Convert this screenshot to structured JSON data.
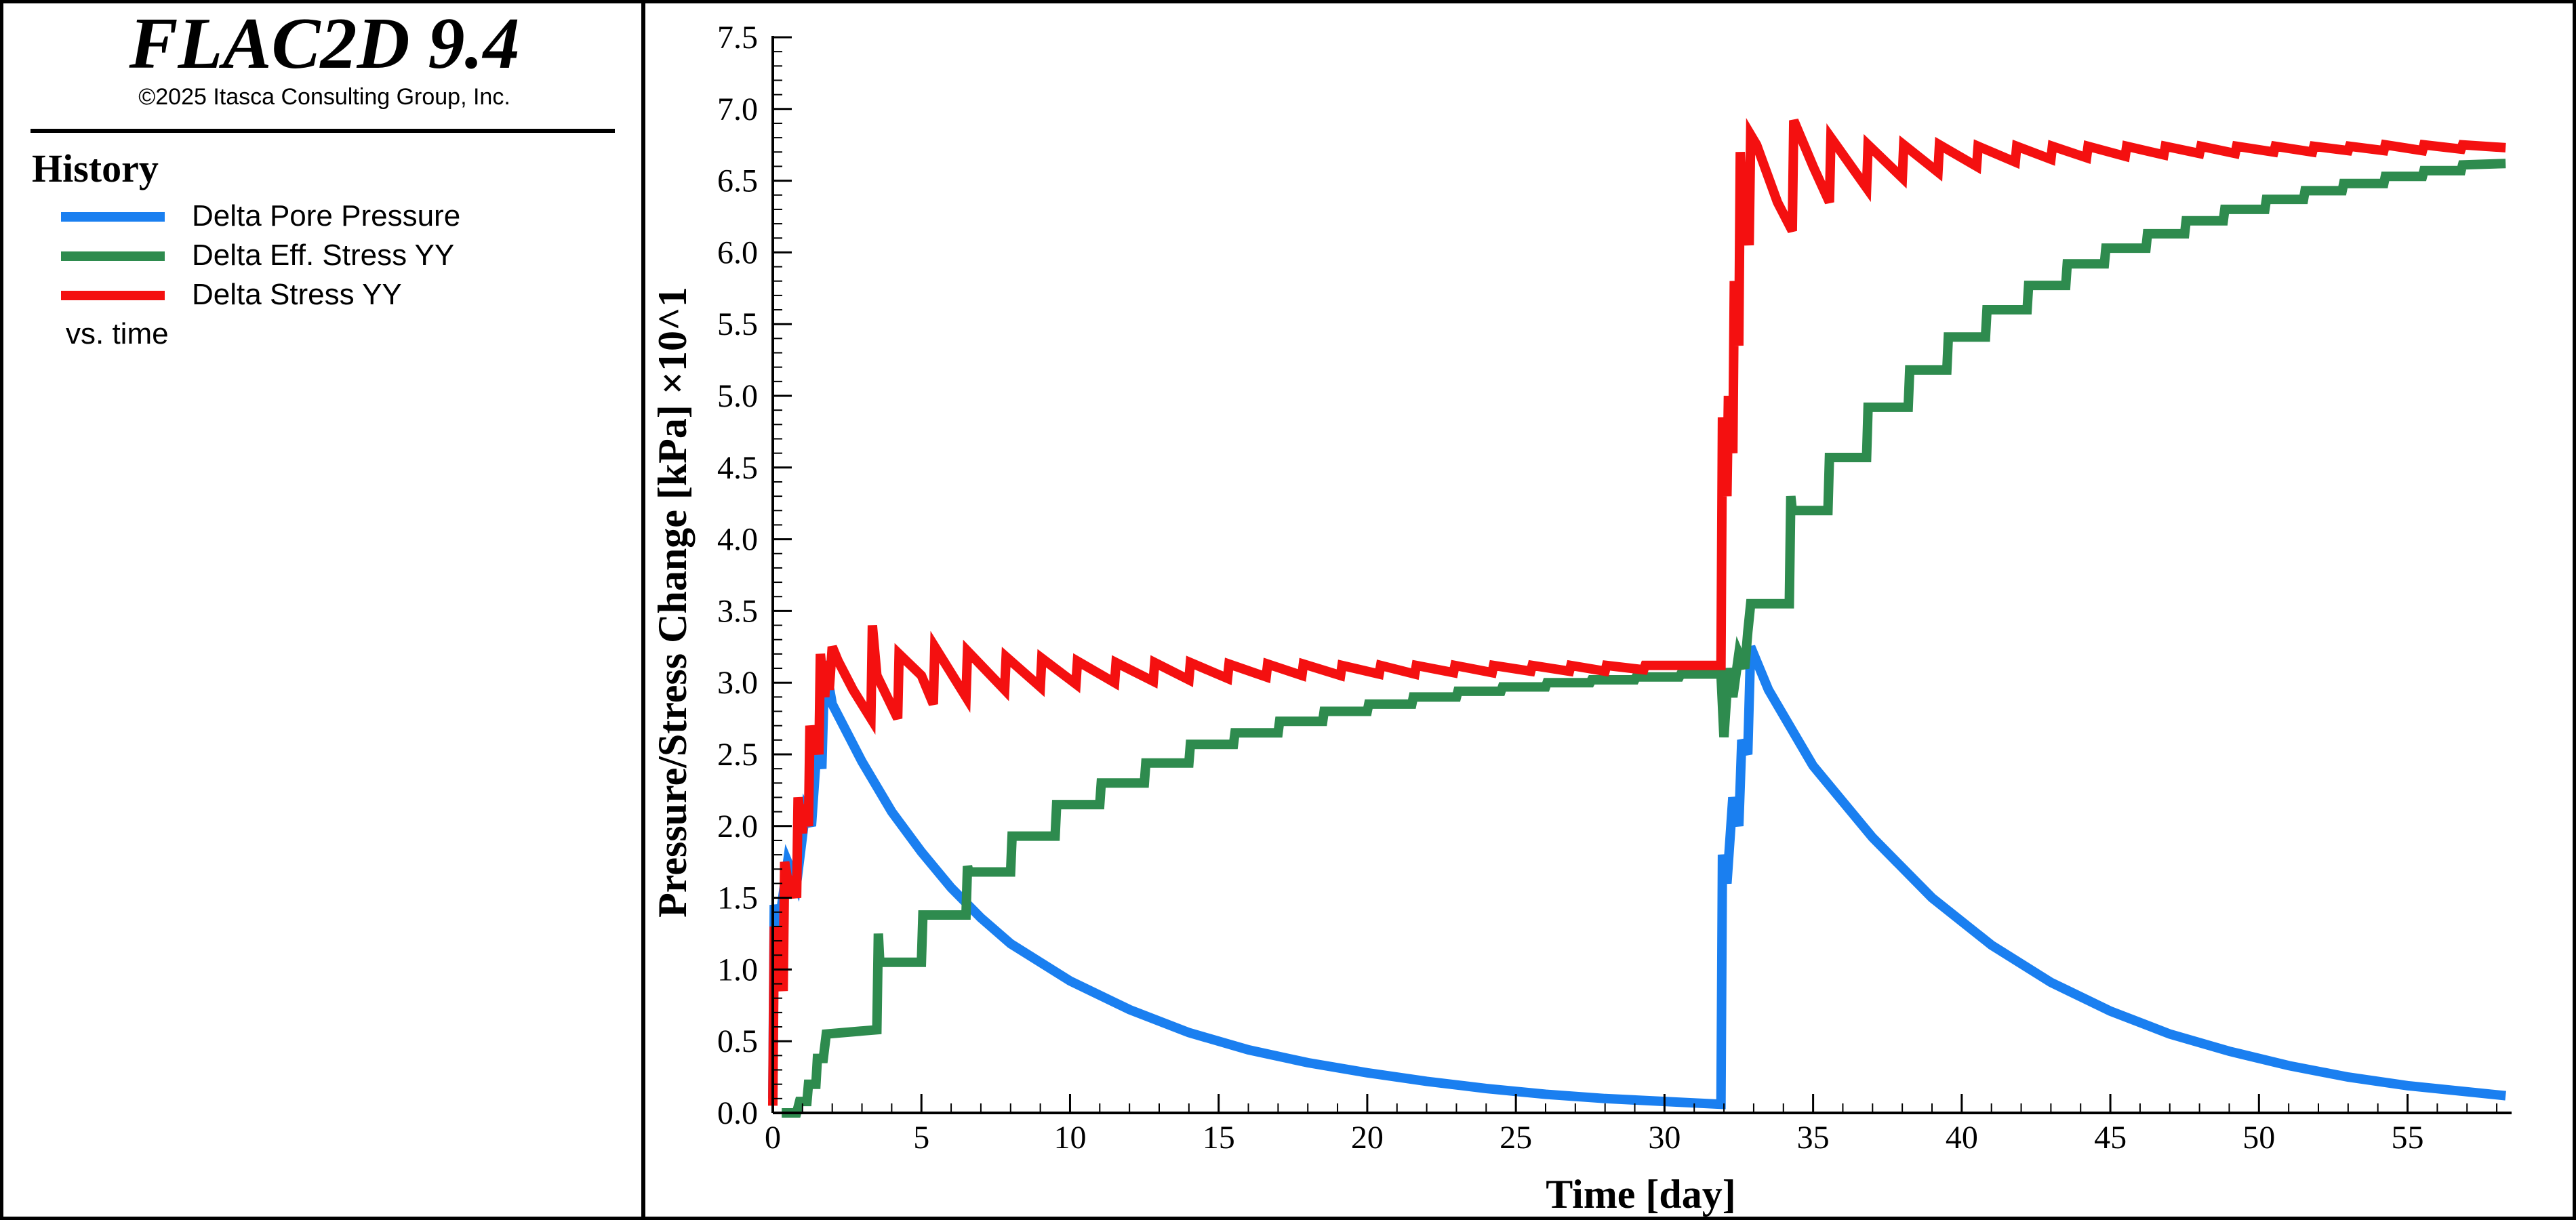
{
  "header": {
    "app_title": "FLAC2D 9.4",
    "copyright": "©2025 Itasca Consulting Group, Inc."
  },
  "legend": {
    "heading": "History",
    "items": [
      {
        "label": "Delta Pore Pressure",
        "color": "#1a7ff0"
      },
      {
        "label": "Delta Eff. Stress YY",
        "color": "#2e8b4e"
      },
      {
        "label": "Delta Stress YY",
        "color": "#f41010"
      }
    ],
    "footer": "vs. time"
  },
  "chart_data": {
    "type": "line",
    "xlabel": "Time [day]",
    "ylabel": "Pressure/Stress Change [kPa] ×10^1",
    "xlim": [
      0,
      58.5
    ],
    "ylim": [
      0,
      7.5
    ],
    "x_ticks": [
      0,
      5,
      10,
      15,
      20,
      25,
      30,
      35,
      40,
      45,
      50,
      55
    ],
    "x_tick_labels": [
      "0",
      "5",
      "10",
      "15",
      "20",
      "25",
      "30",
      "35",
      "40",
      "45",
      "50",
      "55"
    ],
    "y_ticks": [
      0,
      0.5,
      1,
      1.5,
      2,
      2.5,
      3,
      3.5,
      4,
      4.5,
      5,
      5.5,
      6,
      6.5,
      7,
      7.5
    ],
    "y_tick_labels": [
      "0.0",
      "0.5",
      "1.0",
      "1.5",
      "2.0",
      "2.5",
      "3.0",
      "3.5",
      "4.0",
      "4.5",
      "5.0",
      "5.5",
      "6.0",
      "6.5",
      "7.0",
      "7.5"
    ],
    "grid": false,
    "series": [
      {
        "name": "Delta Pore Pressure",
        "color": "#1a7ff0",
        "points": [
          [
            0,
            0.1
          ],
          [
            0.05,
            1.45
          ],
          [
            0.2,
            1.3
          ],
          [
            0.5,
            1.75
          ],
          [
            0.8,
            1.6
          ],
          [
            1.1,
            2.1
          ],
          [
            1.3,
            2.0
          ],
          [
            1.5,
            2.6
          ],
          [
            1.65,
            2.4
          ],
          [
            1.75,
            3.15
          ],
          [
            2.0,
            2.85
          ],
          [
            3,
            2.45
          ],
          [
            4,
            2.1
          ],
          [
            5,
            1.82
          ],
          [
            6,
            1.57
          ],
          [
            7,
            1.36
          ],
          [
            8,
            1.18
          ],
          [
            10,
            0.92
          ],
          [
            12,
            0.72
          ],
          [
            14,
            0.56
          ],
          [
            16,
            0.44
          ],
          [
            18,
            0.35
          ],
          [
            20,
            0.28
          ],
          [
            22,
            0.22
          ],
          [
            24,
            0.17
          ],
          [
            26,
            0.13
          ],
          [
            28,
            0.1
          ],
          [
            30,
            0.08
          ],
          [
            31.9,
            0.06
          ],
          [
            31.95,
            1.8
          ],
          [
            32.1,
            1.6
          ],
          [
            32.3,
            2.2
          ],
          [
            32.5,
            2.0
          ],
          [
            32.6,
            2.6
          ],
          [
            32.8,
            2.5
          ],
          [
            32.9,
            3.25
          ],
          [
            33.5,
            2.95
          ],
          [
            35,
            2.42
          ],
          [
            37,
            1.92
          ],
          [
            39,
            1.5
          ],
          [
            41,
            1.17
          ],
          [
            43,
            0.91
          ],
          [
            45,
            0.71
          ],
          [
            47,
            0.55
          ],
          [
            49,
            0.43
          ],
          [
            51,
            0.33
          ],
          [
            53,
            0.25
          ],
          [
            55,
            0.19
          ],
          [
            58.3,
            0.12
          ]
        ]
      },
      {
        "name": "Delta Eff. Stress YY",
        "color": "#2e8b4e",
        "points": [
          [
            0.3,
            0
          ],
          [
            0.8,
            0
          ],
          [
            0.9,
            0.08
          ],
          [
            1.15,
            0.08
          ],
          [
            1.2,
            0.2
          ],
          [
            1.45,
            0.2
          ],
          [
            1.5,
            0.38
          ],
          [
            1.7,
            0.38
          ],
          [
            1.8,
            0.55
          ],
          [
            3.5,
            0.58
          ],
          [
            3.55,
            1.25
          ],
          [
            3.6,
            1.05
          ],
          [
            5,
            1.05
          ],
          [
            5.05,
            1.38
          ],
          [
            6.5,
            1.38
          ],
          [
            6.55,
            1.72
          ],
          [
            6.6,
            1.68
          ],
          [
            8,
            1.68
          ],
          [
            8.05,
            1.93
          ],
          [
            9.5,
            1.93
          ],
          [
            9.55,
            2.15
          ],
          [
            11,
            2.15
          ],
          [
            11.05,
            2.3
          ],
          [
            12.5,
            2.3
          ],
          [
            12.55,
            2.44
          ],
          [
            14,
            2.44
          ],
          [
            14.05,
            2.57
          ],
          [
            15.5,
            2.57
          ],
          [
            15.55,
            2.65
          ],
          [
            17,
            2.65
          ],
          [
            17.05,
            2.73
          ],
          [
            18.5,
            2.73
          ],
          [
            18.55,
            2.8
          ],
          [
            20,
            2.8
          ],
          [
            20.05,
            2.85
          ],
          [
            21.5,
            2.85
          ],
          [
            21.55,
            2.9
          ],
          [
            23,
            2.9
          ],
          [
            23.05,
            2.94
          ],
          [
            24.5,
            2.94
          ],
          [
            24.55,
            2.97
          ],
          [
            26,
            2.97
          ],
          [
            26.05,
            3.0
          ],
          [
            27.5,
            3.0
          ],
          [
            27.55,
            3.02
          ],
          [
            29,
            3.02
          ],
          [
            29.05,
            3.04
          ],
          [
            30.5,
            3.04
          ],
          [
            30.55,
            3.06
          ],
          [
            31.9,
            3.06
          ],
          [
            32.0,
            2.62
          ],
          [
            32.15,
            3.1
          ],
          [
            32.3,
            2.9
          ],
          [
            32.5,
            3.2
          ],
          [
            32.7,
            3.1
          ],
          [
            32.8,
            3.35
          ],
          [
            32.9,
            3.55
          ],
          [
            34.2,
            3.55
          ],
          [
            34.25,
            4.3
          ],
          [
            34.3,
            4.2
          ],
          [
            35.5,
            4.2
          ],
          [
            35.55,
            4.57
          ],
          [
            36.8,
            4.57
          ],
          [
            36.85,
            4.92
          ],
          [
            38.2,
            4.92
          ],
          [
            38.25,
            5.18
          ],
          [
            39.5,
            5.18
          ],
          [
            39.55,
            5.41
          ],
          [
            40.8,
            5.41
          ],
          [
            40.85,
            5.6
          ],
          [
            42.2,
            5.6
          ],
          [
            42.25,
            5.77
          ],
          [
            43.5,
            5.77
          ],
          [
            43.55,
            5.92
          ],
          [
            44.8,
            5.92
          ],
          [
            44.85,
            6.03
          ],
          [
            46.2,
            6.03
          ],
          [
            46.25,
            6.13
          ],
          [
            47.5,
            6.13
          ],
          [
            47.55,
            6.22
          ],
          [
            48.8,
            6.22
          ],
          [
            48.85,
            6.3
          ],
          [
            50.2,
            6.3
          ],
          [
            50.25,
            6.37
          ],
          [
            51.5,
            6.37
          ],
          [
            51.55,
            6.43
          ],
          [
            52.8,
            6.43
          ],
          [
            52.85,
            6.48
          ],
          [
            54.2,
            6.48
          ],
          [
            54.25,
            6.53
          ],
          [
            55.5,
            6.53
          ],
          [
            55.55,
            6.57
          ],
          [
            56.8,
            6.57
          ],
          [
            56.85,
            6.61
          ],
          [
            58.3,
            6.62
          ]
        ]
      },
      {
        "name": "Delta Stress YY",
        "color": "#f41010",
        "points": [
          [
            0,
            0.05
          ],
          [
            0.05,
            1.3
          ],
          [
            0.15,
            0.95
          ],
          [
            0.2,
            1.2
          ],
          [
            0.35,
            0.85
          ],
          [
            0.4,
            1.75
          ],
          [
            0.6,
            1.5
          ],
          [
            0.65,
            1.65
          ],
          [
            0.8,
            1.5
          ],
          [
            0.85,
            2.2
          ],
          [
            1.0,
            1.95
          ],
          [
            1.05,
            2.15
          ],
          [
            1.2,
            2.0
          ],
          [
            1.25,
            2.7
          ],
          [
            1.4,
            2.5
          ],
          [
            1.45,
            2.65
          ],
          [
            1.55,
            2.5
          ],
          [
            1.6,
            3.2
          ],
          [
            1.75,
            2.9
          ],
          [
            1.8,
            3.15
          ],
          [
            1.9,
            2.95
          ],
          [
            2.0,
            3.25
          ],
          [
            2.2,
            3.15
          ],
          [
            2.7,
            2.95
          ],
          [
            3.3,
            2.75
          ],
          [
            3.35,
            3.4
          ],
          [
            3.5,
            3.05
          ],
          [
            4.2,
            2.75
          ],
          [
            4.25,
            3.2
          ],
          [
            5,
            3.05
          ],
          [
            5.4,
            2.85
          ],
          [
            5.45,
            3.25
          ],
          [
            6.5,
            2.9
          ],
          [
            6.55,
            3.22
          ],
          [
            7.8,
            2.95
          ],
          [
            7.85,
            3.18
          ],
          [
            9,
            2.97
          ],
          [
            9.05,
            3.17
          ],
          [
            10.2,
            2.99
          ],
          [
            10.25,
            3.15
          ],
          [
            11.5,
            3.0
          ],
          [
            11.55,
            3.14
          ],
          [
            12.8,
            3.01
          ],
          [
            12.85,
            3.14
          ],
          [
            14,
            3.02
          ],
          [
            14.05,
            3.14
          ],
          [
            15.3,
            3.03
          ],
          [
            15.35,
            3.13
          ],
          [
            16.6,
            3.04
          ],
          [
            16.65,
            3.13
          ],
          [
            17.8,
            3.05
          ],
          [
            17.85,
            3.13
          ],
          [
            19.1,
            3.05
          ],
          [
            19.15,
            3.12
          ],
          [
            20.4,
            3.06
          ],
          [
            20.45,
            3.12
          ],
          [
            21.6,
            3.06
          ],
          [
            21.65,
            3.12
          ],
          [
            22.9,
            3.07
          ],
          [
            22.95,
            3.12
          ],
          [
            24.2,
            3.07
          ],
          [
            24.25,
            3.12
          ],
          [
            25.5,
            3.08
          ],
          [
            25.55,
            3.12
          ],
          [
            26.8,
            3.08
          ],
          [
            26.85,
            3.12
          ],
          [
            28,
            3.08
          ],
          [
            28.05,
            3.12
          ],
          [
            29.3,
            3.09
          ],
          [
            29.35,
            3.12
          ],
          [
            31.9,
            3.12
          ],
          [
            31.95,
            4.85
          ],
          [
            32.1,
            4.3
          ],
          [
            32.15,
            5.0
          ],
          [
            32.3,
            4.6
          ],
          [
            32.35,
            5.8
          ],
          [
            32.5,
            5.35
          ],
          [
            32.55,
            6.7
          ],
          [
            32.7,
            6.05
          ],
          [
            32.75,
            6.3
          ],
          [
            32.85,
            6.05
          ],
          [
            32.9,
            6.82
          ],
          [
            33.1,
            6.75
          ],
          [
            33.8,
            6.35
          ],
          [
            34.3,
            6.15
          ],
          [
            34.35,
            6.92
          ],
          [
            35.0,
            6.6
          ],
          [
            35.55,
            6.35
          ],
          [
            35.6,
            6.8
          ],
          [
            36.8,
            6.45
          ],
          [
            36.85,
            6.75
          ],
          [
            38,
            6.52
          ],
          [
            38.05,
            6.75
          ],
          [
            39.2,
            6.56
          ],
          [
            39.25,
            6.75
          ],
          [
            40.5,
            6.6
          ],
          [
            40.55,
            6.74
          ],
          [
            41.8,
            6.63
          ],
          [
            41.85,
            6.74
          ],
          [
            43,
            6.65
          ],
          [
            43.05,
            6.74
          ],
          [
            44.2,
            6.66
          ],
          [
            44.25,
            6.74
          ],
          [
            45.5,
            6.67
          ],
          [
            45.55,
            6.74
          ],
          [
            46.8,
            6.68
          ],
          [
            46.85,
            6.74
          ],
          [
            48,
            6.69
          ],
          [
            48.05,
            6.74
          ],
          [
            49.2,
            6.69
          ],
          [
            49.25,
            6.74
          ],
          [
            50.5,
            6.7
          ],
          [
            50.55,
            6.74
          ],
          [
            51.8,
            6.7
          ],
          [
            51.85,
            6.74
          ],
          [
            53,
            6.71
          ],
          [
            53.05,
            6.74
          ],
          [
            54.2,
            6.71
          ],
          [
            54.25,
            6.75
          ],
          [
            55.5,
            6.71
          ],
          [
            55.55,
            6.75
          ],
          [
            56.8,
            6.72
          ],
          [
            56.85,
            6.75
          ],
          [
            58.3,
            6.73
          ]
        ]
      }
    ]
  }
}
